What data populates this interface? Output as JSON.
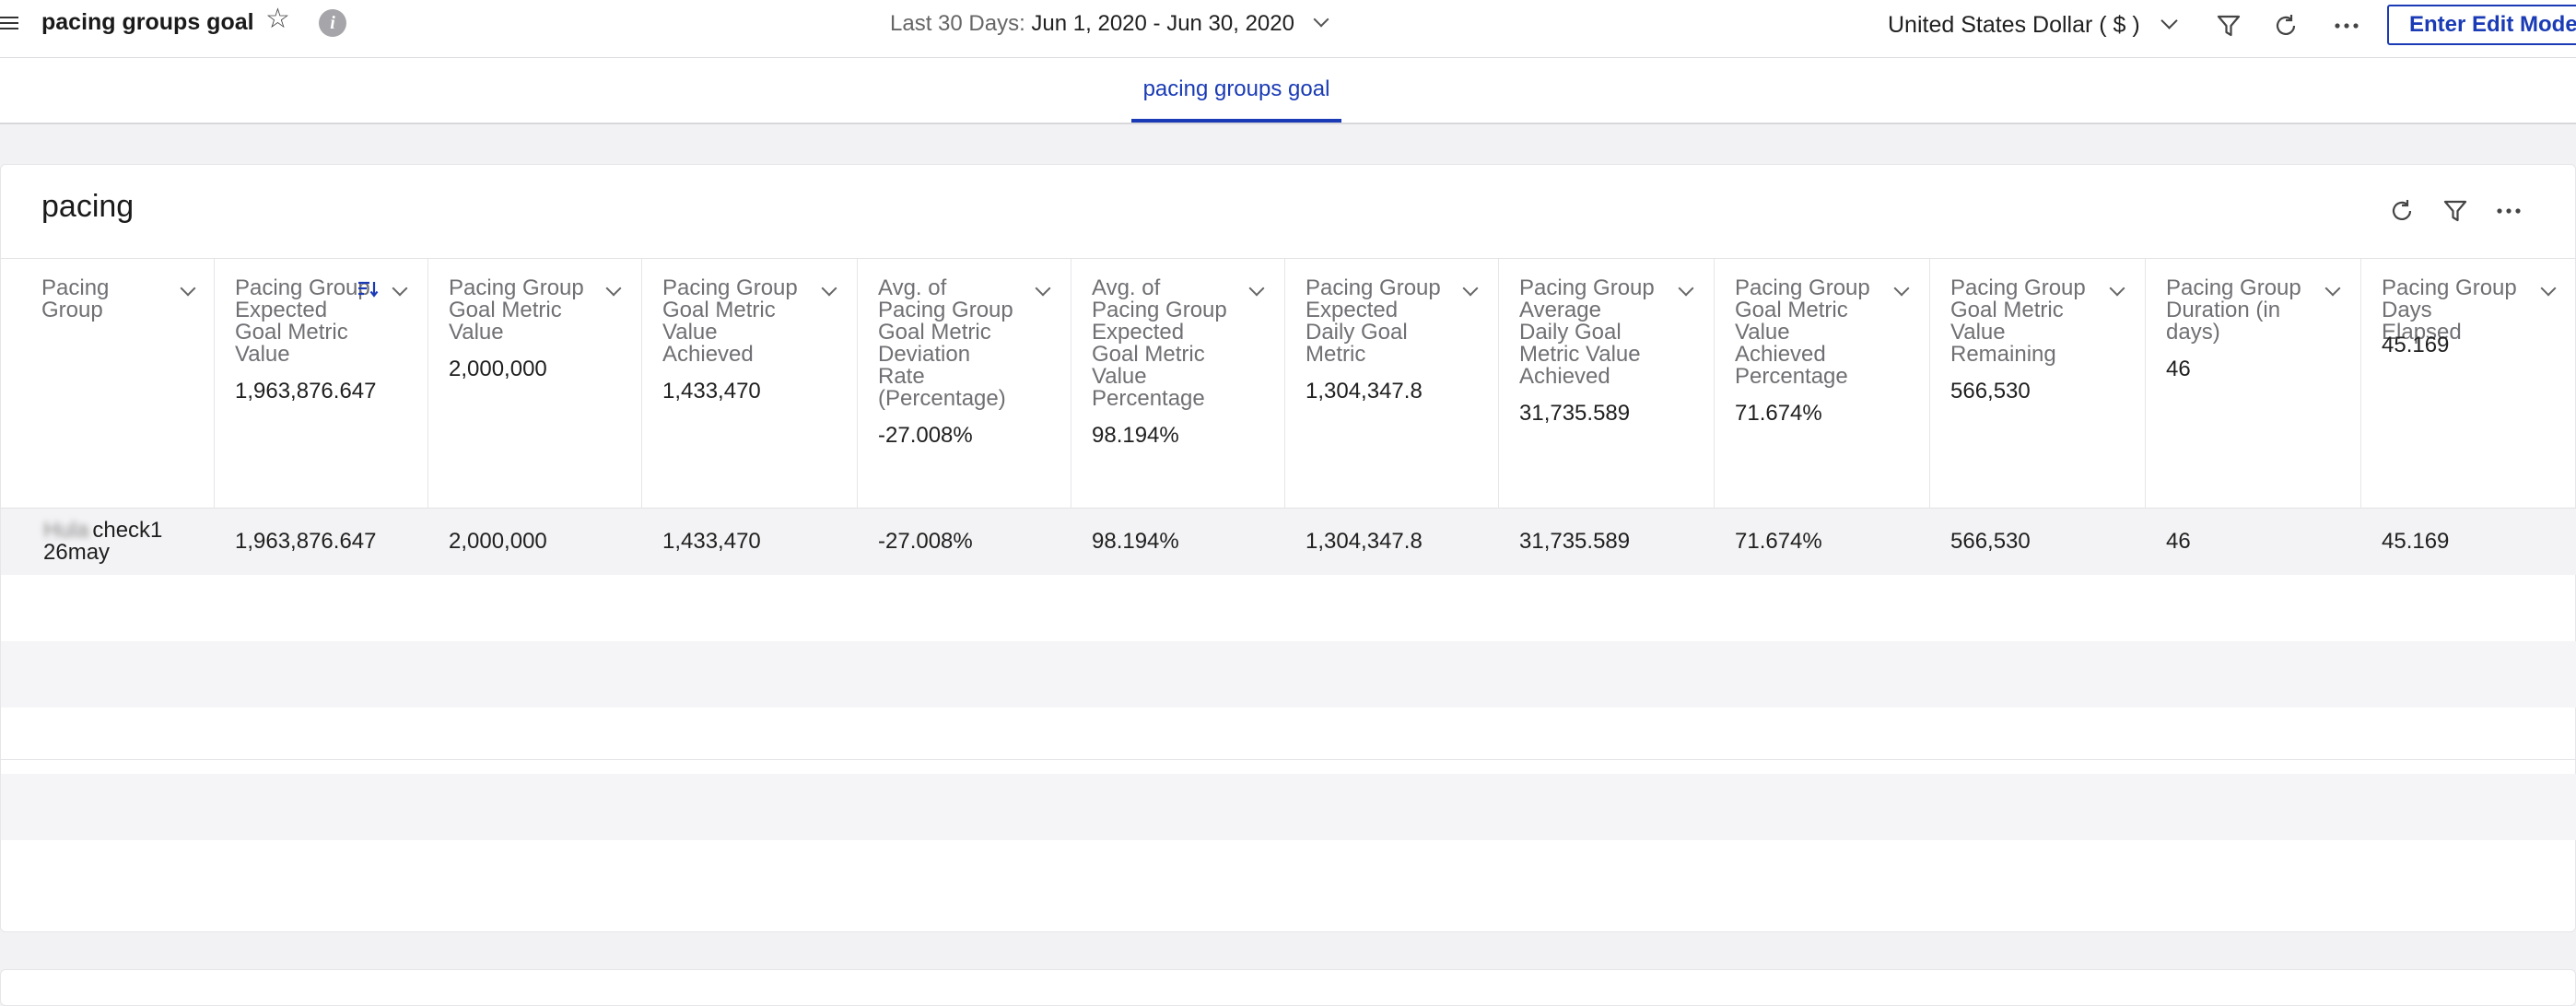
{
  "header": {
    "title": "pacing groups goal",
    "date_prefix": "Last 30 Days:",
    "date_range": "Jun 1, 2020 - Jun 30, 2020",
    "currency": "United States Dollar ( $ )",
    "edit_button": "Enter Edit Mode",
    "info_glyph": "i"
  },
  "tabs": [
    {
      "label": "pacing groups goal",
      "active": true
    }
  ],
  "widget": {
    "title": "pacing",
    "columns": [
      {
        "label": "Pacing Group",
        "total": ""
      },
      {
        "label": "Pacing Group Expected Goal Metric Value",
        "total": "1,963,876.647",
        "sorted": true
      },
      {
        "label": "Pacing Group Goal Metric Value",
        "total": "2,000,000"
      },
      {
        "label": "Pacing Group Goal Metric Value Achieved",
        "total": "1,433,470"
      },
      {
        "label": "Avg. of Pacing Group Goal Metric Deviation Rate (Percentage)",
        "total": "-27.008%"
      },
      {
        "label": "Avg. of Pacing Group Expected Goal Metric Value Percentage",
        "total": "98.194%"
      },
      {
        "label": "Pacing Group Expected Daily Goal Metric",
        "total": "1,304,347.8"
      },
      {
        "label": "Pacing Group Average Daily Goal Metric Value Achieved",
        "total": "31,735.589"
      },
      {
        "label": "Pacing Group Goal Metric Value Achieved Percentage",
        "total": "71.674%"
      },
      {
        "label": "Pacing Group Goal Metric Value Remaining",
        "total": "566,530"
      },
      {
        "label": "Pacing Group Duration (in days)",
        "total": "46"
      },
      {
        "label": "Pacing Group Days Elapsed",
        "total": "45.169"
      }
    ],
    "rows": [
      {
        "name_blurred": "Hula",
        "name_line1": "check1",
        "name_line2": "26may",
        "cells": [
          "1,963,876.647",
          "2,000,000",
          "1,433,470",
          "-27.008%",
          "98.194%",
          "1,304,347.8",
          "31,735.589",
          "71.674%",
          "566,530",
          "46",
          "45.169"
        ]
      }
    ]
  },
  "colors": {
    "accent": "#1a3bb5",
    "muted_text": "#707074",
    "row_shade": "#f3f3f5"
  }
}
